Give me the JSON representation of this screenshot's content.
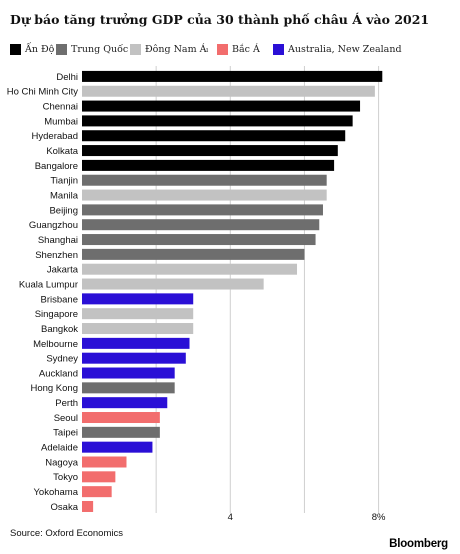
{
  "title": "Dự báo tăng trưởng GDP của 30 thành phố châu Á vào 2021",
  "legend": [
    {
      "key": "india",
      "label": "Ấn Độ",
      "color": "#000000"
    },
    {
      "key": "china",
      "label": "Trung Quốc",
      "color": "#6e6e6e"
    },
    {
      "key": "sea",
      "label": "Đông Nam Á",
      "color": "#c2c2c2"
    },
    {
      "key": "north_asia",
      "label": "Bắc Á",
      "color": "#f26d6d"
    },
    {
      "key": "anz",
      "label": "Australia, New Zealand",
      "color": "#2a0fd6"
    }
  ],
  "legend_mark": "ı",
  "source": "Source: Oxford Economics",
  "brand": "Bloomberg",
  "chart_data": {
    "type": "bar",
    "orientation": "horizontal",
    "categories": [
      "Delhi",
      "Ho Chi Minh City",
      "Chennai",
      "Mumbai",
      "Hyderabad",
      "Kolkata",
      "Bangalore",
      "Tianjin",
      "Manila",
      "Beijing",
      "Guangzhou",
      "Shanghai",
      "Shenzhen",
      "Jakarta",
      "Kuala Lumpur",
      "Brisbane",
      "Singapore",
      "Bangkok",
      "Melbourne",
      "Sydney",
      "Auckland",
      "Hong Kong",
      "Perth",
      "Seoul",
      "Taipei",
      "Adelaide",
      "Nagoya",
      "Tokyo",
      "Yokohama",
      "Osaka"
    ],
    "values": [
      8.1,
      7.9,
      7.5,
      7.3,
      7.1,
      6.9,
      6.8,
      6.6,
      6.6,
      6.5,
      6.4,
      6.3,
      6.0,
      5.8,
      4.9,
      3.0,
      3.0,
      3.0,
      2.9,
      2.8,
      2.5,
      2.5,
      2.3,
      2.1,
      2.1,
      1.9,
      1.2,
      0.9,
      0.8,
      0.3
    ],
    "groups": [
      "india",
      "sea",
      "india",
      "india",
      "india",
      "india",
      "india",
      "china",
      "sea",
      "china",
      "china",
      "china",
      "china",
      "sea",
      "sea",
      "anz",
      "sea",
      "sea",
      "anz",
      "anz",
      "anz",
      "china",
      "anz",
      "north_asia",
      "china",
      "anz",
      "north_asia",
      "north_asia",
      "north_asia",
      "north_asia"
    ],
    "xticks": [
      {
        "value": 2,
        "label": ""
      },
      {
        "value": 4,
        "label": "4"
      },
      {
        "value": 6,
        "label": ""
      },
      {
        "value": 8,
        "label": "8%"
      }
    ],
    "xlim": [
      0,
      8.2
    ],
    "grid": true,
    "legend_position": "top"
  }
}
